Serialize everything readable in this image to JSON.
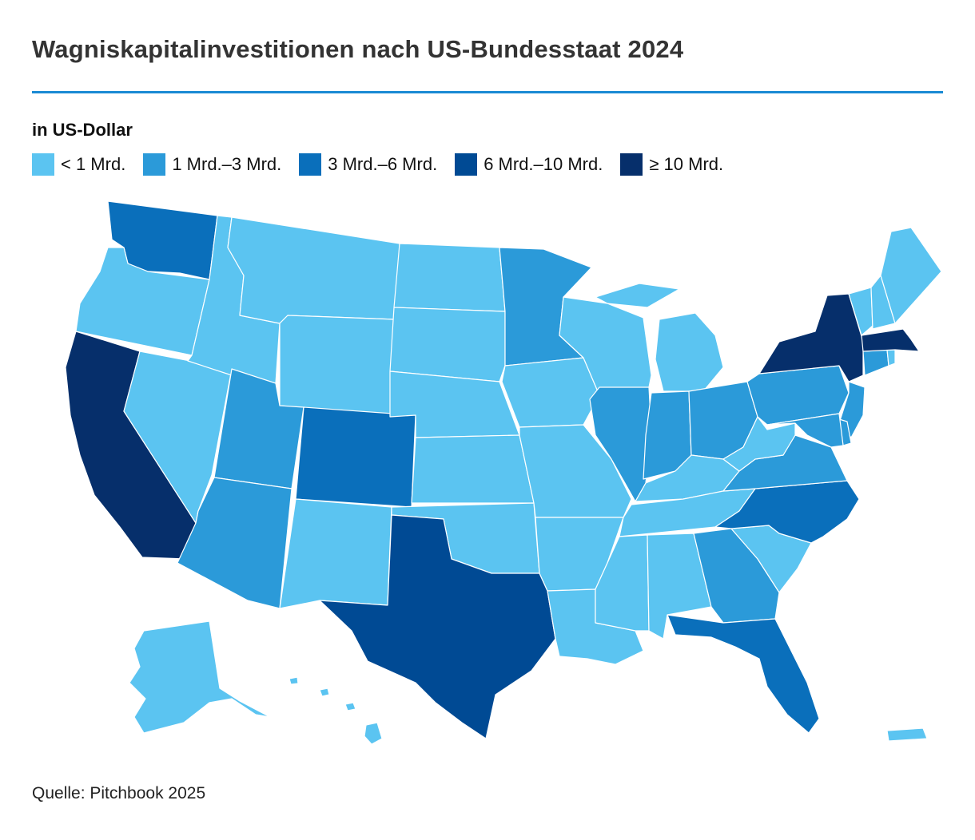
{
  "header": {
    "title": "Wagniskapitalinvestitionen nach US-Bundesstaat 2024",
    "unit": "in US-Dollar"
  },
  "legend": [
    {
      "label": "< 1 Mrd.",
      "color": "#5bc4f1"
    },
    {
      "label": "1 Mrd.–3 Mrd.",
      "color": "#2b9ad9"
    },
    {
      "label": "3 Mrd.–6 Mrd.",
      "color": "#0a6fbb"
    },
    {
      "label": "6 Mrd.–10 Mrd.",
      "color": "#004a94"
    },
    {
      "label": "≥ 10 Mrd.",
      "color": "#062f6b"
    }
  ],
  "map_data": {
    "states": {
      "WA": 2,
      "OR": 0,
      "CA": 4,
      "NV": 0,
      "ID": 0,
      "MT": 0,
      "WY": 0,
      "UT": 1,
      "AZ": 1,
      "CO": 2,
      "NM": 0,
      "ND": 0,
      "SD": 0,
      "NE": 0,
      "KS": 0,
      "OK": 0,
      "TX": 3,
      "MN": 1,
      "IA": 0,
      "MO": 0,
      "AR": 0,
      "LA": 0,
      "WI": 0,
      "IL": 1,
      "MI": 0,
      "IN": 1,
      "OH": 1,
      "KY": 0,
      "TN": 0,
      "MS": 0,
      "AL": 0,
      "GA": 1,
      "FL": 2,
      "SC": 0,
      "NC": 2,
      "VA": 1,
      "WV": 0,
      "PA": 1,
      "NY": 4,
      "NJ": 1,
      "DE": 1,
      "MD": 1,
      "CT": 1,
      "RI": 0,
      "MA": 4,
      "VT": 0,
      "NH": 0,
      "ME": 0,
      "AK": 0,
      "HI": 0,
      "PR": 0
    }
  },
  "footer": {
    "source": "Quelle: Pitchbook 2025"
  }
}
